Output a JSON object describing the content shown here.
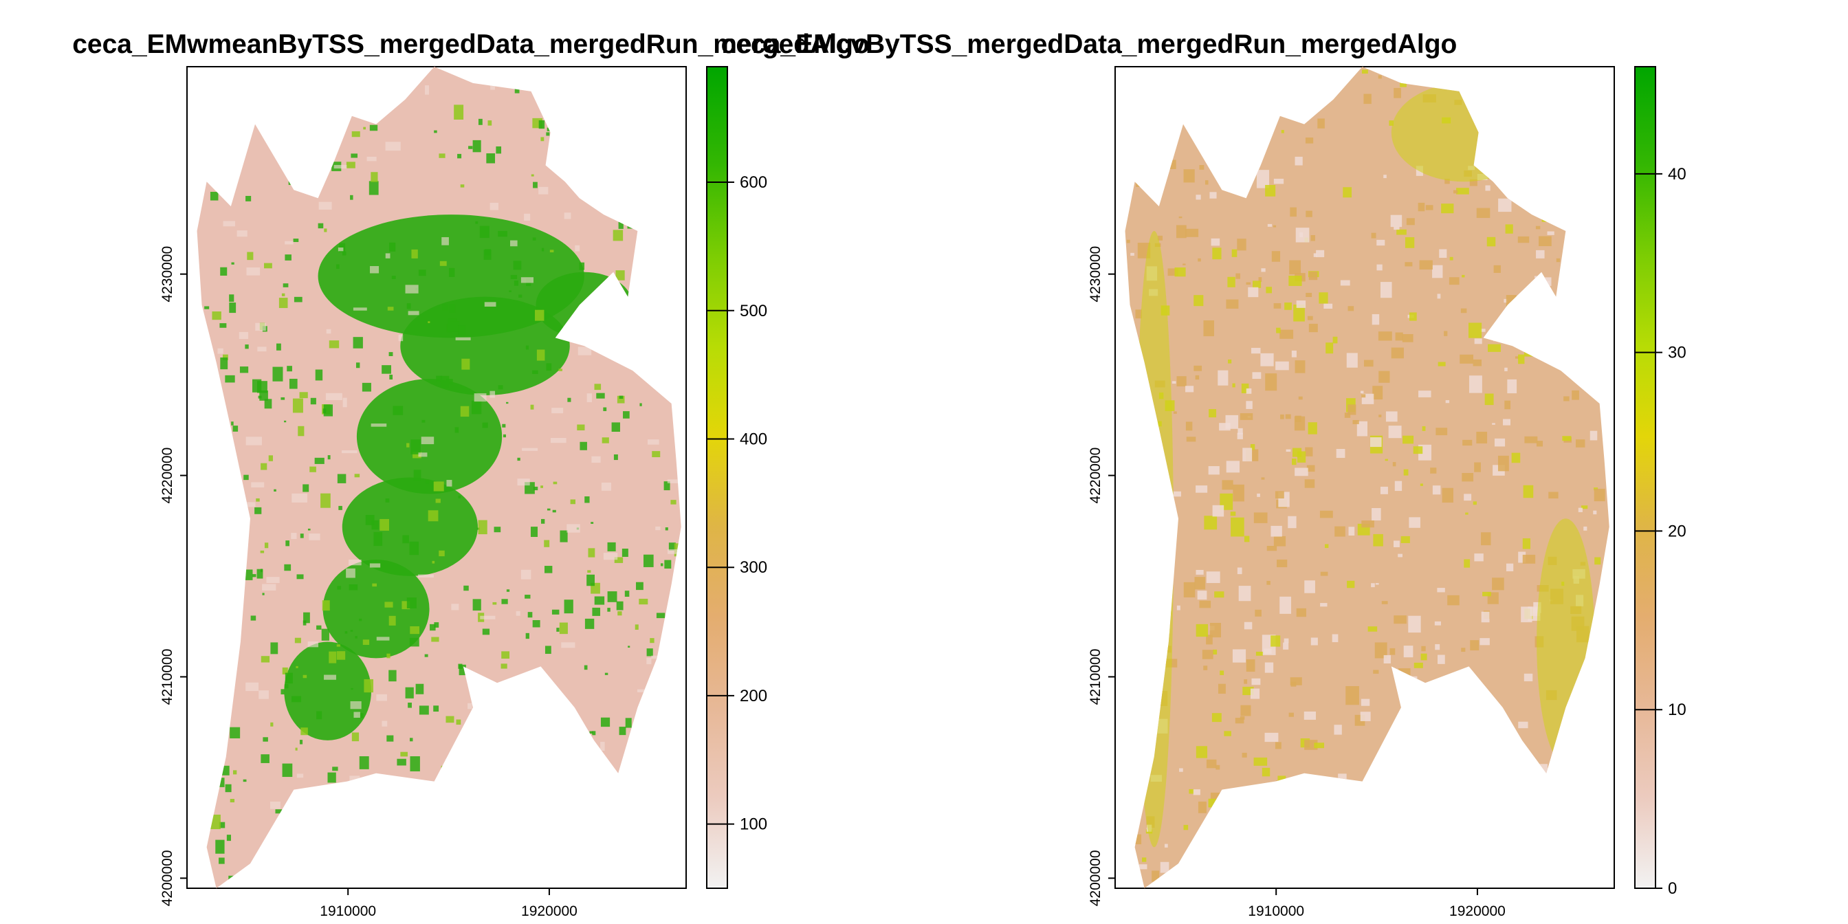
{
  "panels": [
    {
      "id": "wmean",
      "title": "ceca_EMwmeanByTSS_mergedData_mergedRun_mergedAlgo",
      "x_ticks": [
        {
          "value": 1910000,
          "label": "1910000"
        },
        {
          "value": 1920000,
          "label": "1920000"
        }
      ],
      "y_ticks": [
        {
          "value": 4200000,
          "label": "4200000"
        },
        {
          "value": 4210000,
          "label": "4210000"
        },
        {
          "value": 4220000,
          "label": "4220000"
        },
        {
          "value": 4230000,
          "label": "4230000"
        }
      ],
      "legend": {
        "min": 50,
        "max": 690,
        "ticks": [
          {
            "value": 100,
            "label": "100"
          },
          {
            "value": 200,
            "label": "200"
          },
          {
            "value": 300,
            "label": "300"
          },
          {
            "value": 400,
            "label": "400"
          },
          {
            "value": 500,
            "label": "500"
          },
          {
            "value": 600,
            "label": "600"
          }
        ]
      },
      "map_colors": {
        "background": "#e9c0b3",
        "green": "#2aab0f",
        "yellow_green": "#8ec81b",
        "light": "#f1dcd6"
      }
    },
    {
      "id": "cv",
      "title": "ceca_EMcvByTSS_mergedData_mergedRun_mergedAlgo",
      "x_ticks": [
        {
          "value": 1910000,
          "label": "1910000"
        },
        {
          "value": 1920000,
          "label": "1920000"
        }
      ],
      "y_ticks": [
        {
          "value": 4200000,
          "label": "4200000"
        },
        {
          "value": 4210000,
          "label": "4210000"
        },
        {
          "value": 4220000,
          "label": "4220000"
        },
        {
          "value": 4230000,
          "label": "4230000"
        }
      ],
      "legend": {
        "min": 0,
        "max": 46,
        "ticks": [
          {
            "value": 0,
            "label": "0"
          },
          {
            "value": 10,
            "label": "10"
          },
          {
            "value": 20,
            "label": "20"
          },
          {
            "value": 30,
            "label": "30"
          },
          {
            "value": 40,
            "label": "40"
          }
        ]
      },
      "map_colors": {
        "background": "#e2b790",
        "orange": "#dcaa5a",
        "yellow": "#cfd21a",
        "light": "#f0dcd6"
      }
    }
  ],
  "extent": {
    "x": [
      1902000,
      1926800
    ],
    "y": [
      4199500,
      4240300
    ]
  },
  "colorscale": [
    "#f2f2f2",
    "#eccbbf",
    "#e7b897",
    "#e4ad6f",
    "#dfb546",
    "#e3d609",
    "#b7dc05",
    "#7ccd03",
    "#34b702",
    "#00a600"
  ]
}
